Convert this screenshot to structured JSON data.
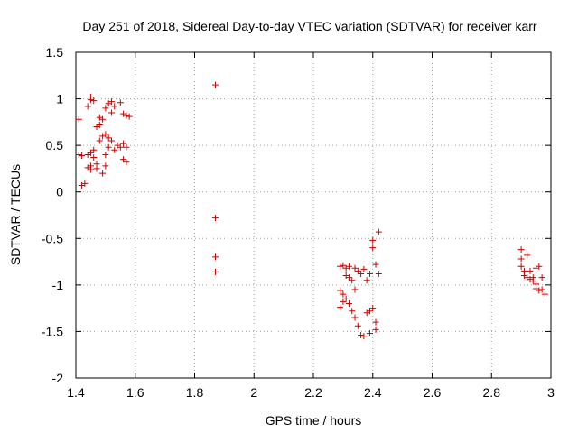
{
  "chart_data": {
    "type": "scatter",
    "title": "Day 251 of 2018, Sidereal Day-to-day VTEC variation (SDTVAR) for receiver karr",
    "xlabel": "GPS time / hours",
    "ylabel": "SDTVAR / TECUs",
    "xlim": [
      1.4,
      3.0
    ],
    "ylim": [
      -2.0,
      1.5
    ],
    "xticks": [
      "1.4",
      "1.6",
      "1.8",
      "2",
      "2.2",
      "2.4",
      "2.6",
      "2.8",
      "3"
    ],
    "yticks": [
      "1.5",
      "1",
      "0.5",
      "0",
      "-0.5",
      "-1",
      "-1.5",
      "-2"
    ],
    "grid": true,
    "marker": "+",
    "point_color": "#cc0000",
    "x": [
      1.41,
      1.41,
      1.42,
      1.42,
      1.43,
      1.44,
      1.44,
      1.44,
      1.45,
      1.45,
      1.45,
      1.45,
      1.45,
      1.46,
      1.46,
      1.46,
      1.47,
      1.47,
      1.47,
      1.48,
      1.48,
      1.48,
      1.49,
      1.49,
      1.49,
      1.5,
      1.5,
      1.5,
      1.5,
      1.51,
      1.51,
      1.51,
      1.52,
      1.52,
      1.52,
      1.53,
      1.53,
      1.54,
      1.55,
      1.55,
      1.56,
      1.56,
      1.56,
      1.57,
      1.57,
      1.57,
      1.58,
      1.87,
      1.87,
      1.87,
      1.87,
      2.29,
      2.29,
      2.29,
      2.3,
      2.3,
      2.3,
      2.31,
      2.31,
      2.31,
      2.32,
      2.32,
      2.32,
      2.33,
      2.33,
      2.34,
      2.34,
      2.34,
      2.35,
      2.35,
      2.36,
      2.36,
      2.37,
      2.37,
      2.38,
      2.38,
      2.39,
      2.39,
      2.39,
      2.4,
      2.4,
      2.4,
      2.41,
      2.41,
      2.41,
      2.42,
      2.42,
      2.9,
      2.9,
      2.9,
      2.91,
      2.91,
      2.92,
      2.92,
      2.93,
      2.93,
      2.94,
      2.94,
      2.95,
      2.95,
      2.95,
      2.96,
      2.96,
      2.97,
      2.97,
      2.98
    ],
    "y": [
      0.78,
      0.4,
      0.07,
      0.39,
      0.09,
      0.92,
      0.4,
      0.26,
      1.02,
      0.99,
      0.28,
      0.24,
      0.42,
      0.98,
      0.37,
      0.45,
      0.7,
      0.3,
      0.25,
      0.72,
      0.55,
      0.8,
      0.6,
      0.2,
      0.78,
      0.9,
      0.62,
      0.4,
      0.28,
      0.95,
      0.58,
      0.48,
      0.97,
      0.85,
      0.55,
      0.92,
      0.45,
      0.5,
      0.96,
      0.48,
      0.84,
      0.35,
      0.52,
      0.82,
      0.32,
      0.48,
      0.81,
      1.15,
      -0.28,
      -0.7,
      -0.86,
      -0.8,
      -1.06,
      -1.24,
      -0.79,
      -1.1,
      -1.18,
      -0.82,
      -1.15,
      -0.9,
      -1.2,
      -0.8,
      -0.92,
      -1.28,
      -0.95,
      -0.82,
      -1.35,
      -1.05,
      -0.85,
      -1.44,
      -0.88,
      -1.54,
      -0.83,
      -1.55,
      -0.95,
      -1.3,
      -0.88,
      -1.28,
      -1.52,
      -0.6,
      -1.25,
      -0.52,
      -0.78,
      -1.4,
      -1.48,
      -0.43,
      -0.88,
      -0.62,
      -0.72,
      -0.8,
      -0.85,
      -0.9,
      -0.68,
      -0.92,
      -0.85,
      -0.94,
      -0.92,
      -0.96,
      -0.82,
      -0.99,
      -1.04,
      -0.8,
      -1.06,
      -0.92,
      -1.05,
      -1.1
    ]
  }
}
